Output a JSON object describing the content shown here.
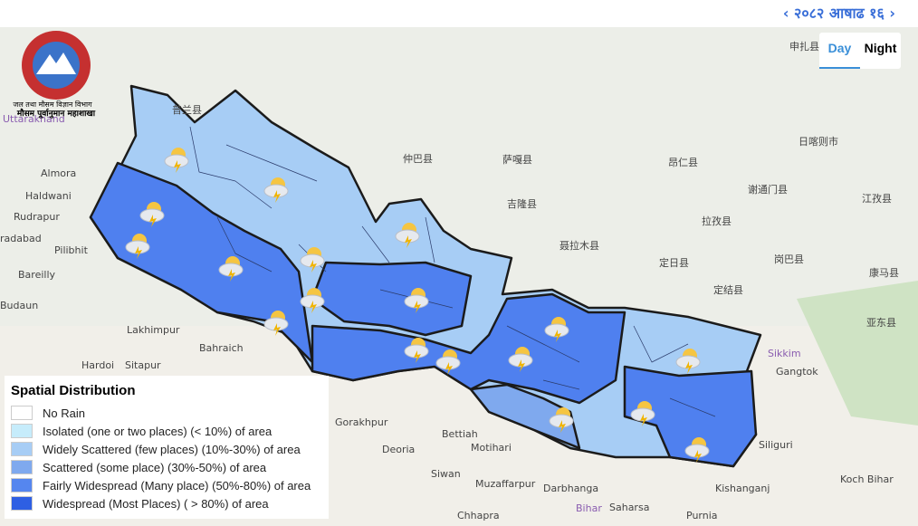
{
  "header": {
    "date": "२०८२ आषाढ १६",
    "prev": "‹",
    "next": "›",
    "tabs": [
      "Day",
      "Night"
    ]
  },
  "logo": {
    "line1": "जल तथा मौसम विज्ञान विभाग",
    "line2": "मौसम पूर्वानुमान महाशाखा"
  },
  "legend": {
    "title": "Spatial Distribution",
    "items": [
      {
        "label": "No Rain",
        "color": "#ffffff"
      },
      {
        "label": "Isolated (one or two places) (< 10%) of area",
        "color": "#c6ecfb"
      },
      {
        "label": "Widely Scattered (few places) (10%-30%) of area",
        "color": "#a7cdf5"
      },
      {
        "label": "Scattered (some place) (30%-50%) of area",
        "color": "#7fa9ee"
      },
      {
        "label": "Fairly Widespread (Many place) (50%-80%) of area",
        "color": "#5586ef"
      },
      {
        "label": "Widespread (Most Places) ( > 80%) of area",
        "color": "#2e5fe3"
      }
    ]
  },
  "map_labels": [
    "Uttarakhand",
    "Almora",
    "Haldwani",
    "Rudrapur",
    "radabad",
    "Pilibhit",
    "Bareilly",
    "Budaun",
    "Lakhimpur",
    "Bahraich",
    "Hardoi",
    "Sitapur",
    "Gorakhpur",
    "Bettiah",
    "Deoria",
    "Motihari",
    "Siwan",
    "Muzaffarpur",
    "Chhapra",
    "Darbhanga",
    "Saharsa",
    "Bihar",
    "Purnia",
    "Kishanganj",
    "Siliguri",
    "Sikkim",
    "Gangtok",
    "Koch Bihar",
    "申扎县",
    "日喀则市",
    "仲巴县",
    "萨嘎县",
    "昂仁县",
    "谢通门县",
    "江孜县",
    "吉隆县",
    "拉孜县",
    "聂拉木县",
    "定日县",
    "岗巴县",
    "康马县",
    "定结县",
    "亚东县",
    "普兰县"
  ]
}
